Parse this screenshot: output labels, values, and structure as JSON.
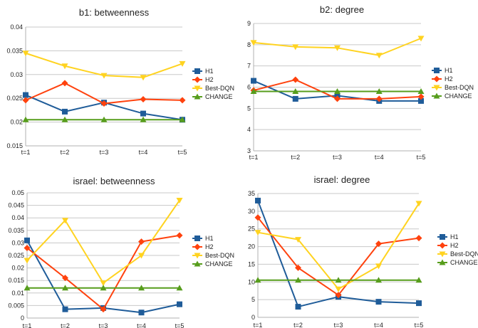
{
  "colors": {
    "H1": "#1f5c99",
    "H2": "#ff420e",
    "Best-DQN": "#ffd320",
    "CHANGE": "#579d1c"
  },
  "chart_data": [
    {
      "type": "line",
      "title": "b1: betweenness",
      "categories": [
        "t=1",
        "t=2",
        "t=3",
        "t=4",
        "t=5"
      ],
      "ylim": [
        0.015,
        0.04
      ],
      "yticks": [
        0.015,
        0.02,
        0.025,
        0.03,
        0.035,
        0.04
      ],
      "ytick_labels": [
        "0.015",
        "0.02",
        "0.025",
        "0.03",
        "0.035",
        "0.04"
      ],
      "grid": true,
      "legend": "right",
      "series": [
        {
          "name": "H1",
          "marker": "square",
          "values": [
            0.0257,
            0.0222,
            0.0241,
            0.0218,
            0.0205
          ]
        },
        {
          "name": "H2",
          "marker": "diamond",
          "values": [
            0.0246,
            0.0282,
            0.0239,
            0.0248,
            0.0246
          ]
        },
        {
          "name": "Best-DQN",
          "marker": "triangle-down",
          "values": [
            0.0345,
            0.0318,
            0.0298,
            0.0294,
            0.0323
          ]
        },
        {
          "name": "CHANGE",
          "marker": "triangle-up",
          "values": [
            0.0205,
            0.0205,
            0.0205,
            0.0205,
            0.0205
          ]
        }
      ]
    },
    {
      "type": "line",
      "title": "b2: degree",
      "categories": [
        "t=1",
        "t=2",
        "t=3",
        "t=4",
        "t=5"
      ],
      "ylim": [
        3,
        9
      ],
      "yticks": [
        3,
        4,
        5,
        6,
        7,
        8,
        9
      ],
      "ytick_labels": [
        "3",
        "4",
        "5",
        "6",
        "7",
        "8",
        "9"
      ],
      "grid": true,
      "legend": "right",
      "series": [
        {
          "name": "H1",
          "marker": "square",
          "values": [
            6.3,
            5.45,
            5.6,
            5.35,
            5.35
          ]
        },
        {
          "name": "H2",
          "marker": "diamond",
          "values": [
            5.85,
            6.35,
            5.45,
            5.45,
            5.55
          ]
        },
        {
          "name": "Best-DQN",
          "marker": "triangle-down",
          "values": [
            8.1,
            7.9,
            7.85,
            7.5,
            8.3
          ]
        },
        {
          "name": "CHANGE",
          "marker": "triangle-up",
          "values": [
            5.8,
            5.8,
            5.8,
            5.8,
            5.8
          ]
        }
      ]
    },
    {
      "type": "line",
      "title": "israel: betweenness",
      "categories": [
        "t=1",
        "t=2",
        "t=3",
        "t=4",
        "t=5"
      ],
      "ylim": [
        0,
        0.05
      ],
      "yticks": [
        0,
        0.005,
        0.01,
        0.015,
        0.02,
        0.025,
        0.03,
        0.035,
        0.04,
        0.045,
        0.05
      ],
      "ytick_labels": [
        "0",
        "0.005",
        "0.01",
        "0.015",
        "0.02",
        "0.025",
        "0.03",
        "0.035",
        "0.04",
        "0.045",
        "0.05"
      ],
      "grid": true,
      "legend": "right",
      "series": [
        {
          "name": "H1",
          "marker": "square",
          "values": [
            0.031,
            0.0035,
            0.004,
            0.0022,
            0.0055
          ]
        },
        {
          "name": "H2",
          "marker": "diamond",
          "values": [
            0.028,
            0.016,
            0.0035,
            0.0305,
            0.033
          ]
        },
        {
          "name": "Best-DQN",
          "marker": "triangle-down",
          "values": [
            0.023,
            0.039,
            0.014,
            0.025,
            0.047
          ]
        },
        {
          "name": "CHANGE",
          "marker": "triangle-up",
          "values": [
            0.012,
            0.012,
            0.012,
            0.012,
            0.012
          ]
        }
      ]
    },
    {
      "type": "line",
      "title": "israel: degree",
      "categories": [
        "t=1",
        "t=2",
        "t=3",
        "t=4",
        "t=5"
      ],
      "ylim": [
        0,
        35
      ],
      "yticks": [
        0,
        5,
        10,
        15,
        20,
        25,
        30,
        35
      ],
      "ytick_labels": [
        "0",
        "5",
        "10",
        "15",
        "20",
        "25",
        "30",
        "35"
      ],
      "grid": true,
      "legend": "right",
      "series": [
        {
          "name": "H1",
          "marker": "square",
          "values": [
            33,
            3,
            5.8,
            4.4,
            4
          ]
        },
        {
          "name": "H2",
          "marker": "diamond",
          "values": [
            28.2,
            14,
            6.3,
            20.8,
            22.4
          ]
        },
        {
          "name": "Best-DQN",
          "marker": "triangle-down",
          "values": [
            24,
            22,
            8,
            14.5,
            32.2
          ]
        },
        {
          "name": "CHANGE",
          "marker": "triangle-up",
          "values": [
            10.5,
            10.5,
            10.5,
            10.5,
            10.5
          ]
        }
      ]
    }
  ]
}
